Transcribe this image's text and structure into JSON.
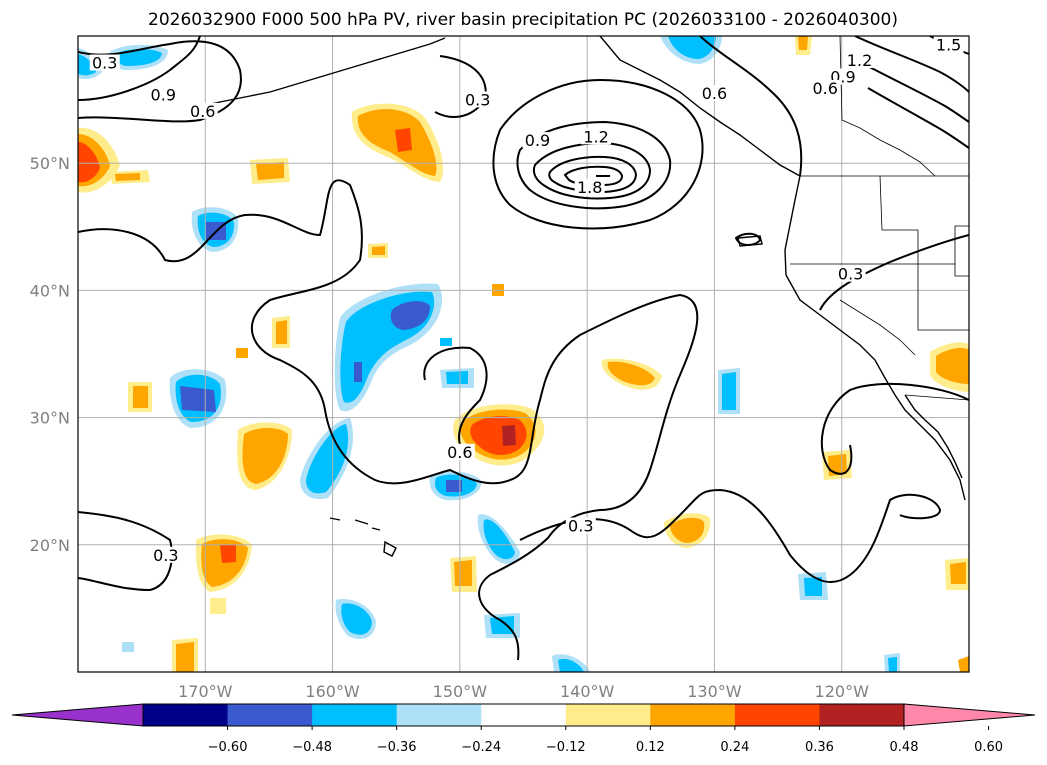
{
  "title": "2026032900 F000 500 hPa PV, river basin precipitation PC (2026033100 - 2026040300)",
  "map": {
    "lon_range": [
      -180,
      -110
    ],
    "lat_range": [
      10,
      60
    ],
    "lon_ticks": [
      {
        "value": -170,
        "label": "170°W"
      },
      {
        "value": -160,
        "label": "160°W"
      },
      {
        "value": -150,
        "label": "150°W"
      },
      {
        "value": -140,
        "label": "140°W"
      },
      {
        "value": -130,
        "label": "130°W"
      },
      {
        "value": -120,
        "label": "120°W"
      }
    ],
    "lat_ticks": [
      {
        "value": 20,
        "label": "20°N"
      },
      {
        "value": 30,
        "label": "30°N"
      },
      {
        "value": 40,
        "label": "40°N"
      },
      {
        "value": 50,
        "label": "50°N"
      }
    ],
    "contour_labels": [
      {
        "text": "0.3",
        "lon": -177.9,
        "lat": 57.6
      },
      {
        "text": "0.9",
        "lon": -173.3,
        "lat": 55.1
      },
      {
        "text": "0.6",
        "lon": -170.2,
        "lat": 53.8
      },
      {
        "text": "0.3",
        "lon": -148.6,
        "lat": 54.7
      },
      {
        "text": "0.9",
        "lon": -143.9,
        "lat": 51.5
      },
      {
        "text": "1.2",
        "lon": -139.3,
        "lat": 51.8
      },
      {
        "text": "1.8",
        "lon": -139.8,
        "lat": 47.8
      },
      {
        "text": "0.6",
        "lon": -130.0,
        "lat": 55.2
      },
      {
        "text": "1.2",
        "lon": -118.6,
        "lat": 57.8
      },
      {
        "text": "0.9",
        "lon": -119.9,
        "lat": 56.5
      },
      {
        "text": "0.6",
        "lon": -121.3,
        "lat": 55.6
      },
      {
        "text": "1.5",
        "lon": -111.6,
        "lat": 59.0
      },
      {
        "text": "0.3",
        "lon": -119.3,
        "lat": 41.0
      },
      {
        "text": "0.6",
        "lon": -150.0,
        "lat": 27.0
      },
      {
        "text": "0.3",
        "lon": -140.5,
        "lat": 21.2
      },
      {
        "text": "0.3",
        "lon": -173.1,
        "lat": 18.9
      }
    ]
  },
  "colorbar": {
    "colors": [
      "#9932cc",
      "#00008b",
      "#3a5bd0",
      "#00bfff",
      "#aee0f8",
      "#ffffff",
      "#ffec8b",
      "#ffa500",
      "#ff4500",
      "#b22222",
      "#ff88aa"
    ],
    "tick_labels": [
      "−0.60",
      "−0.48",
      "−0.36",
      "−0.24",
      "−0.12",
      "0.12",
      "0.24",
      "0.36",
      "0.48",
      "0.60"
    ]
  },
  "chart_data": {
    "type": "contour-map",
    "title": "2026032900 F000 500 hPa PV, river basin precipitation PC (2026033100 - 2026040300)",
    "field_contours": "500 hPa PV (black lines)",
    "contour_levels": [
      0.3,
      0.6,
      0.9,
      1.2,
      1.5,
      1.8
    ],
    "filled_field": "river basin precipitation PC (shading)",
    "shading_levels": [
      -0.6,
      -0.48,
      -0.36,
      -0.24,
      -0.12,
      0.12,
      0.24,
      0.36,
      0.48,
      0.6
    ],
    "xlim": [
      -180,
      -110
    ],
    "ylim": [
      10,
      60
    ],
    "grid": true,
    "legend": "horizontal colorbar, bottom"
  }
}
